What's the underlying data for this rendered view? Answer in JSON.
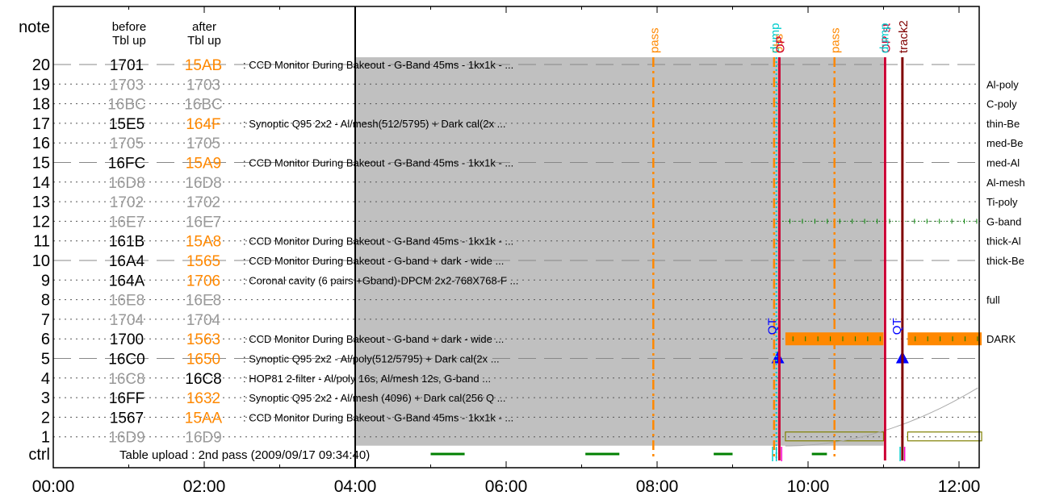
{
  "colors": {
    "gray_code": "#999999",
    "orange": "#ff8800",
    "shaded": "#c0c0c0",
    "red": "#cc0033",
    "darkred": "#800000",
    "blue": "#0000ff",
    "cyan": "#00cccc",
    "green": "#008000",
    "olive": "#808000"
  },
  "chart_data": {
    "type": "timeline",
    "x_ticks": [
      "00:00",
      "02:00",
      "04:00",
      "06:00",
      "08:00",
      "10:00",
      "12:00"
    ],
    "xlim_hours": [
      0,
      12.3
    ],
    "headers": {
      "note": "note",
      "before": [
        "before",
        "Tbl up"
      ],
      "after": [
        "after",
        "Tbl up"
      ],
      "ctrl": "ctrl"
    },
    "rows": [
      {
        "id": "20",
        "before": "1701",
        "before_color": "black",
        "after": "15AB",
        "after_color": "orange",
        "desc": ": CCD Monitor During Bakeout - G-Band 45ms - 1kx1k - ...",
        "right": "",
        "line": "dashed"
      },
      {
        "id": "19",
        "before": "1703",
        "before_color": "gray",
        "after": "1703",
        "after_color": "gray",
        "desc": "",
        "right": "Al-poly",
        "line": "dotted"
      },
      {
        "id": "18",
        "before": "16BC",
        "before_color": "gray",
        "after": "16BC",
        "after_color": "gray",
        "desc": "",
        "right": "C-poly",
        "line": "dotted"
      },
      {
        "id": "17",
        "before": "15E5",
        "before_color": "black",
        "after": "164F",
        "after_color": "orange",
        "desc": ": Synoptic Q95 2x2 - Al/mesh(512/5795) + Dark cal(2x ...",
        "right": "thin-Be",
        "line": "dotted"
      },
      {
        "id": "16",
        "before": "1705",
        "before_color": "gray",
        "after": "1705",
        "after_color": "gray",
        "desc": "",
        "right": "med-Be",
        "line": "dotted"
      },
      {
        "id": "15",
        "before": "16FC",
        "before_color": "black",
        "after": "15A9",
        "after_color": "orange",
        "desc": ": CCD Monitor During Bakeout - G-Band 45ms - 1kx1k - ...",
        "right": "med-Al",
        "line": "dashed"
      },
      {
        "id": "14",
        "before": "16D8",
        "before_color": "gray",
        "after": "16D8",
        "after_color": "gray",
        "desc": "",
        "right": "Al-mesh",
        "line": "dotted"
      },
      {
        "id": "13",
        "before": "1702",
        "before_color": "gray",
        "after": "1702",
        "after_color": "gray",
        "desc": "",
        "right": "Ti-poly",
        "line": "dotted"
      },
      {
        "id": "12",
        "before": "16E7",
        "before_color": "gray",
        "after": "16E7",
        "after_color": "gray",
        "desc": "",
        "right": "G-band",
        "line": "dotted"
      },
      {
        "id": "11",
        "before": "161B",
        "before_color": "black",
        "after": "15A8",
        "after_color": "orange",
        "desc": ": CCD Monitor During Bakeout - G-Band 45ms - 1kx1k - ...",
        "right": "thick-Al",
        "line": "dotted"
      },
      {
        "id": "10",
        "before": "16A4",
        "before_color": "black",
        "after": "1565",
        "after_color": "orange",
        "desc": ": CCD Monitor During Bakeout - G-band + dark - wide ...",
        "right": "thick-Be",
        "line": "dashed"
      },
      {
        "id": "9",
        "before": "164A",
        "before_color": "black",
        "after": "1706",
        "after_color": "orange",
        "desc": ": Coronal cavity (6 pairs +Gband)-DPCM 2x2-768X768-F ...",
        "right": "",
        "line": "dotted"
      },
      {
        "id": "8",
        "before": "16E8",
        "before_color": "gray",
        "after": "16E8",
        "after_color": "gray",
        "desc": "",
        "right": "full",
        "line": "dotted"
      },
      {
        "id": "7",
        "before": "1704",
        "before_color": "gray",
        "after": "1704",
        "after_color": "gray",
        "desc": "",
        "right": "",
        "line": "dotted"
      },
      {
        "id": "6",
        "before": "1700",
        "before_color": "black",
        "after": "1563",
        "after_color": "orange",
        "desc": ": CCD Monitor During Bakeout - G-band + dark - wide ...",
        "right": "DARK",
        "line": "dotted"
      },
      {
        "id": "5",
        "before": "16C0",
        "before_color": "black",
        "after": "1650",
        "after_color": "orange",
        "desc": ": Synoptic Q95 2x2 - Al/poly(512/5795) + Dark cal(2x ...",
        "right": "",
        "line": "dashed"
      },
      {
        "id": "4",
        "before": "16C8",
        "before_color": "gray",
        "after": "16C8",
        "after_color": "black",
        "desc": ": HOP81 2-filter - Al/poly 16s, Al/mesh 12s, G-band ...",
        "right": "",
        "line": "dotted"
      },
      {
        "id": "3",
        "before": "16FF",
        "before_color": "black",
        "after": "1632",
        "after_color": "orange",
        "desc": ": Synoptic Q95 2x2 - Al/mesh (4096) + Dark cal(256 Q ...",
        "right": "",
        "line": "dotted"
      },
      {
        "id": "2",
        "before": "1567",
        "before_color": "black",
        "after": "15AA",
        "after_color": "orange",
        "desc": ": CCD Monitor During Bakeout - G-Band 45ms - 1kx1k - ...",
        "right": "",
        "line": "dotted"
      },
      {
        "id": "1",
        "before": "16D9",
        "before_color": "gray",
        "after": "16D9",
        "after_color": "gray",
        "desc": "",
        "right": "",
        "line": "dotted"
      }
    ],
    "ctrl_text": "Table upload : 2nd pass (2009/09/17 09:34:40)",
    "shaded_region": [
      4.0,
      11.0
    ],
    "vlines": [
      {
        "t": 7.95,
        "label": "pass",
        "color": "orange",
        "style": "dashdot"
      },
      {
        "t": 9.55,
        "label": "p",
        "color": "orange",
        "style": "dashdot"
      },
      {
        "t": 10.35,
        "label": "pass",
        "color": "orange",
        "style": "dashdot"
      },
      {
        "t": 9.58,
        "label": "",
        "color": "cyan",
        "style": "dotted"
      },
      {
        "t": 9.62,
        "label": "",
        "color": "red",
        "style": "solid"
      },
      {
        "t": 11.02,
        "label": "OP st",
        "color": "red",
        "style": "solid"
      },
      {
        "t": 11.25,
        "label": "track2",
        "color": "darkred",
        "style": "solid"
      }
    ],
    "overlap_labels": [
      {
        "t": 9.55,
        "text": "dump",
        "color": "cyan"
      },
      {
        "t": 9.6,
        "text": "obs",
        "color": "orange"
      },
      {
        "t": 9.62,
        "text": "OP",
        "color": "red"
      },
      {
        "t": 11.0,
        "text": "dump",
        "color": "cyan"
      }
    ],
    "qt_markers": [
      9.6,
      11.25
    ],
    "qt_label": "QT",
    "orange_bars": [
      [
        9.7,
        11.0
      ],
      [
        11.32,
        12.3
      ]
    ],
    "olive_boxes": [
      [
        9.7,
        11.0
      ],
      [
        11.32,
        12.3
      ]
    ],
    "gband_tick_range": [
      9.66,
      12.3
    ],
    "ctrl_green_segments": [
      [
        5.0,
        5.45
      ],
      [
        7.05,
        7.5
      ],
      [
        8.75,
        9.0
      ],
      [
        10.05,
        10.25
      ]
    ],
    "ctrl_cyan_ticks": [
      9.53,
      9.58,
      11.22
    ],
    "ctrl_magenta_ticks": [
      9.65,
      11.28
    ]
  }
}
